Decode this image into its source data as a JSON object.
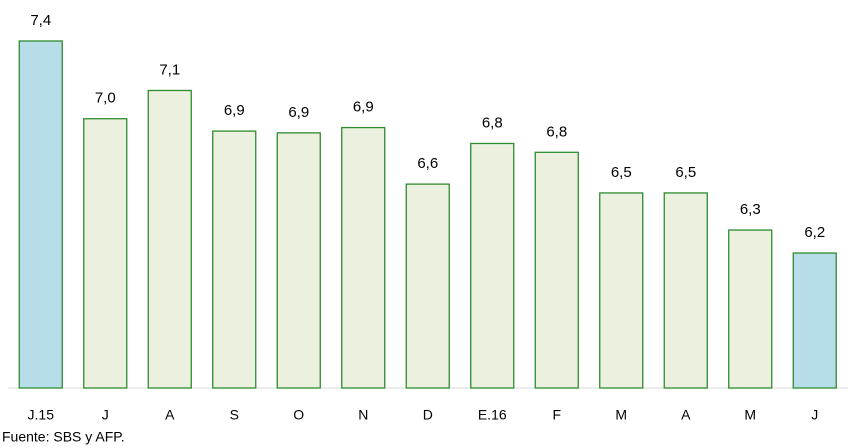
{
  "chart_data": {
    "type": "bar",
    "categories": [
      "J.15",
      "J",
      "A",
      "S",
      "O",
      "N",
      "D",
      "E.16",
      "F",
      "M",
      "A",
      "M",
      "J"
    ],
    "values": [
      7.4,
      6.96,
      7.12,
      6.89,
      6.88,
      6.91,
      6.59,
      6.82,
      6.77,
      6.54,
      6.54,
      6.33,
      6.2
    ],
    "value_labels": [
      "7,4",
      "7,0",
      "7,1",
      "6,9",
      "6,9",
      "6,9",
      "6,6",
      "6,8",
      "6,8",
      "6,5",
      "6,5",
      "6,3",
      "6,2"
    ],
    "colors": [
      "#b7dee8",
      "#ebf1de",
      "#ebf1de",
      "#ebf1de",
      "#ebf1de",
      "#ebf1de",
      "#ebf1de",
      "#ebf1de",
      "#ebf1de",
      "#ebf1de",
      "#ebf1de",
      "#ebf1de",
      "#b7dee8"
    ],
    "edge_color": "#2e8b2e",
    "ylim": [
      5.436,
      7.4
    ],
    "source": "Fuente: SBS y AFP."
  }
}
